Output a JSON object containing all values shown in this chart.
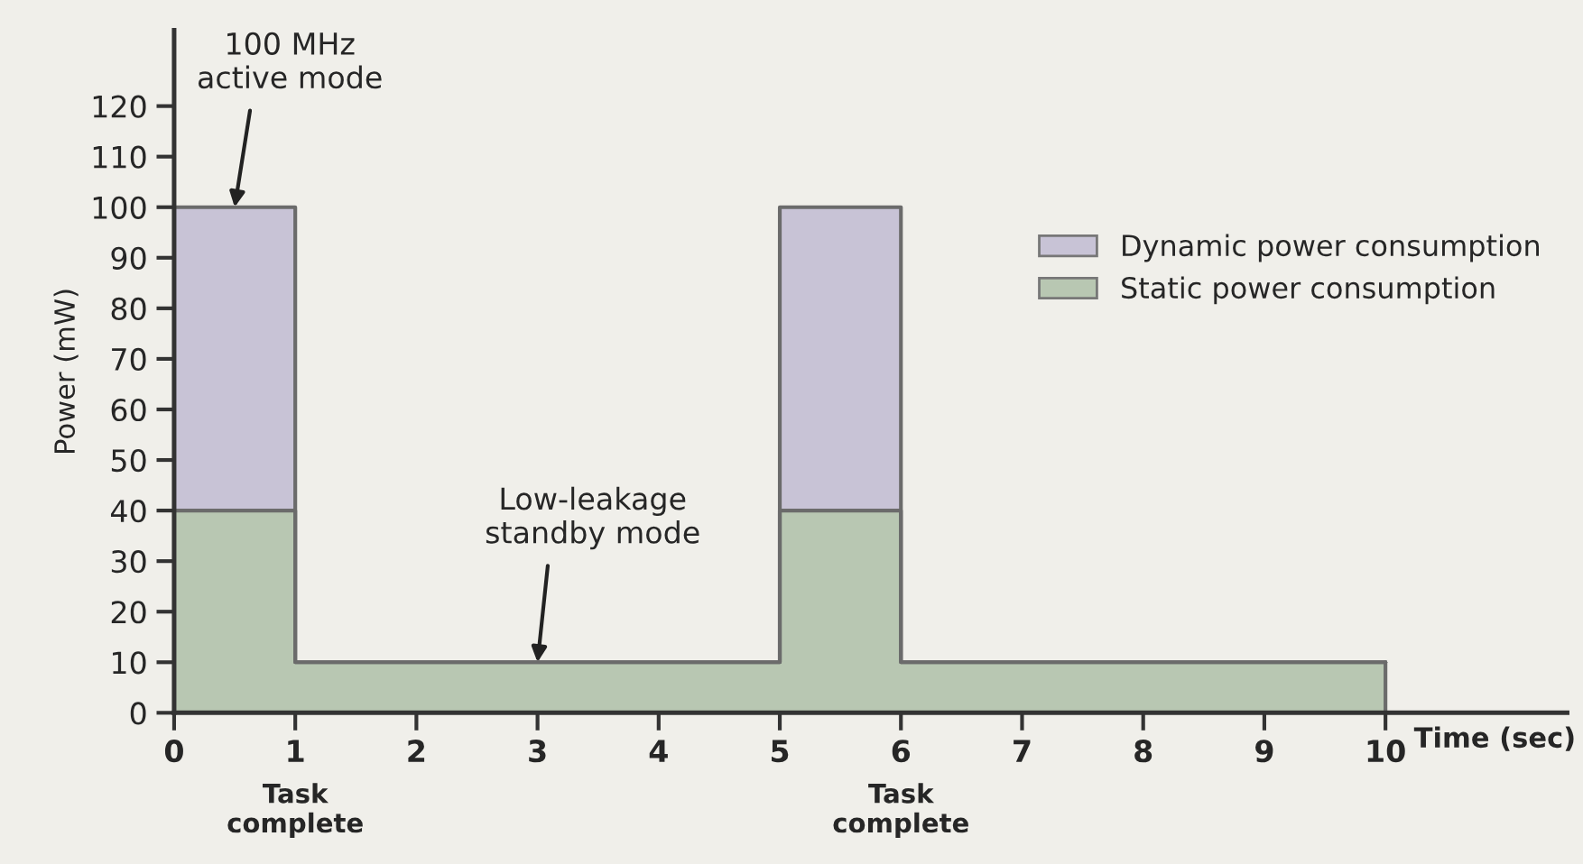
{
  "chart_data": {
    "type": "area",
    "xlabel": "Time (sec)",
    "ylabel": "Power (mW)",
    "stacked": true,
    "x": [
      0,
      1,
      1,
      5,
      5,
      6,
      6,
      10
    ],
    "series": [
      {
        "name": "Static power consumption",
        "color": "#b8c7b2",
        "values": [
          40,
          40,
          10,
          10,
          40,
          40,
          10,
          10
        ]
      },
      {
        "name": "Dynamic power consumption",
        "color": "#c8c3d6",
        "values": [
          60,
          60,
          0,
          0,
          60,
          60,
          0,
          0
        ]
      }
    ],
    "xlim": [
      0,
      11.5
    ],
    "ylim": [
      0,
      135
    ],
    "xticks": [
      0,
      1,
      2,
      3,
      4,
      5,
      6,
      7,
      8,
      9,
      10
    ],
    "yticks": [
      0,
      10,
      20,
      30,
      40,
      50,
      60,
      70,
      80,
      90,
      100,
      110,
      120
    ],
    "annotations": [
      {
        "text": "100 MHz\nactive mode",
        "x": 0.5,
        "y": 100
      },
      {
        "text": "Low-leakage\nstandby mode",
        "x": 3,
        "y": 10
      },
      {
        "text": "Task\ncomplete",
        "x": 1,
        "y": 0
      },
      {
        "text": "Task\ncomplete",
        "x": 6,
        "y": 0
      }
    ],
    "legend": "right",
    "grid": false
  }
}
